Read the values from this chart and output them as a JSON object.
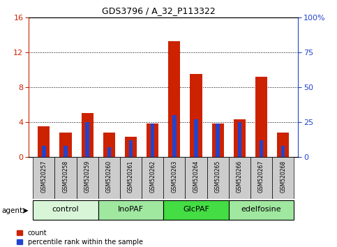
{
  "title": "GDS3796 / A_32_P113322",
  "samples": [
    "GSM520257",
    "GSM520258",
    "GSM520259",
    "GSM520260",
    "GSM520261",
    "GSM520262",
    "GSM520263",
    "GSM520264",
    "GSM520265",
    "GSM520266",
    "GSM520267",
    "GSM520268"
  ],
  "count_values": [
    3.5,
    2.8,
    5.0,
    2.8,
    2.3,
    3.8,
    13.3,
    9.5,
    3.8,
    4.3,
    9.2,
    2.8
  ],
  "percentile_values": [
    8.0,
    8.0,
    25.0,
    7.0,
    12.0,
    24.0,
    30.0,
    27.0,
    24.0,
    25.0,
    12.0,
    8.0
  ],
  "left_ylim": [
    0,
    16
  ],
  "right_ylim": [
    0,
    100
  ],
  "left_yticks": [
    0,
    4,
    8,
    12,
    16
  ],
  "right_yticks": [
    0,
    25,
    50,
    75,
    100
  ],
  "right_yticklabels": [
    "0",
    "25",
    "50",
    "75",
    "100%"
  ],
  "groups": [
    {
      "label": "control",
      "start": 0,
      "end": 3,
      "color": "#d8f5d8"
    },
    {
      "label": "InoPAF",
      "start": 3,
      "end": 6,
      "color": "#a0e8a0"
    },
    {
      "label": "GlcPAF",
      "start": 6,
      "end": 9,
      "color": "#44dd44"
    },
    {
      "label": "edelfosine",
      "start": 9,
      "end": 12,
      "color": "#a0e8a0"
    }
  ],
  "bar_color_red": "#cc2200",
  "bar_color_blue": "#2244cc",
  "tick_bg_color": "#cccccc",
  "agent_label": "agent",
  "legend_count": "count",
  "legend_percentile": "percentile rank within the sample",
  "bar_width": 0.55,
  "blue_bar_width": 0.18
}
